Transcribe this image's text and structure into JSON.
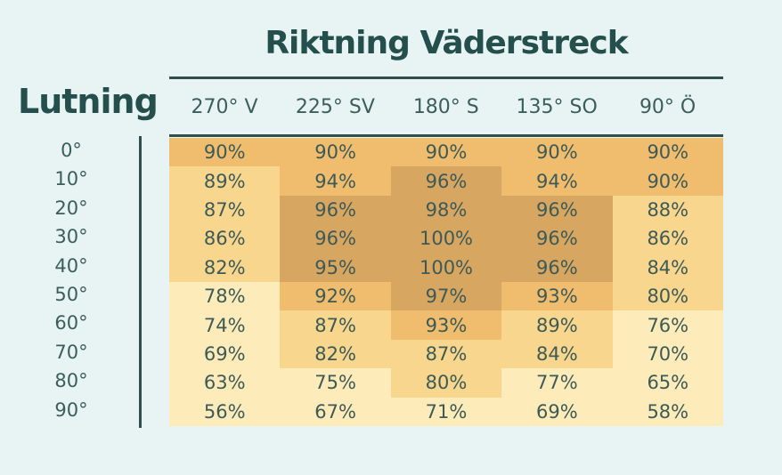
{
  "title": "Riktning Väderstreck",
  "side_title": "Lutning",
  "chart_data": {
    "type": "heatmap",
    "title": "Riktning Väderstreck",
    "xlabel": "Riktning Väderstreck",
    "ylabel": "Lutning",
    "columns": [
      "270° V",
      "225° SV",
      "180° S",
      "135° SO",
      "90° Ö"
    ],
    "rows": [
      "0°",
      "10°",
      "20°",
      "30°",
      "40°",
      "50°",
      "60°",
      "70°",
      "80°",
      "90°"
    ],
    "values": [
      [
        90,
        90,
        90,
        90,
        90
      ],
      [
        89,
        94,
        96,
        94,
        90
      ],
      [
        87,
        96,
        98,
        96,
        88
      ],
      [
        86,
        96,
        100,
        96,
        86
      ],
      [
        82,
        95,
        100,
        96,
        84
      ],
      [
        78,
        92,
        97,
        93,
        80
      ],
      [
        74,
        87,
        93,
        89,
        76
      ],
      [
        69,
        82,
        87,
        84,
        70
      ],
      [
        63,
        75,
        80,
        77,
        65
      ],
      [
        56,
        67,
        71,
        69,
        58
      ]
    ],
    "value_suffix": "%",
    "colors": {
      "band_highest": "#d7a660",
      "band_high": "#f0bc6d",
      "band_mid": "#f8d68e",
      "band_low": "#fdebb9"
    }
  }
}
